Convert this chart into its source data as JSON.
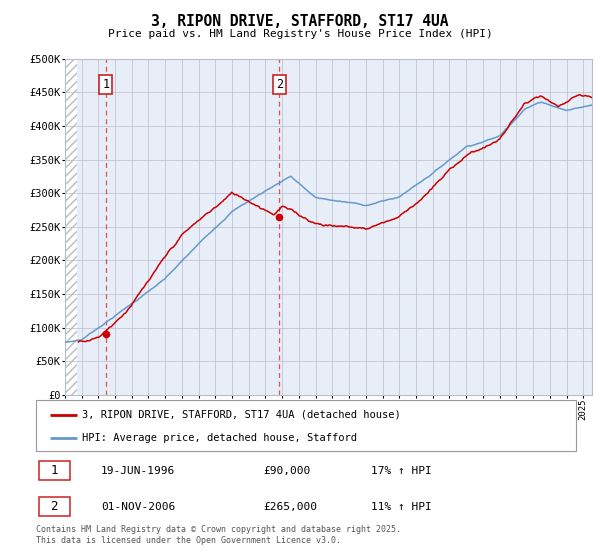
{
  "title": "3, RIPON DRIVE, STAFFORD, ST17 4UA",
  "subtitle": "Price paid vs. HM Land Registry's House Price Index (HPI)",
  "ylim": [
    0,
    500000
  ],
  "yticks": [
    0,
    50000,
    100000,
    150000,
    200000,
    250000,
    300000,
    350000,
    400000,
    450000,
    500000
  ],
  "ytick_labels": [
    "£0",
    "£50K",
    "£100K",
    "£150K",
    "£200K",
    "£250K",
    "£300K",
    "£350K",
    "£400K",
    "£450K",
    "£500K"
  ],
  "xlim_start": 1994.0,
  "xlim_end": 2025.5,
  "hpi_color": "#6699cc",
  "price_color": "#cc0000",
  "dashed_line_color": "#dd4444",
  "purchase1_year": 1996.46,
  "purchase1_price": 90000,
  "purchase1_label": "1",
  "purchase2_year": 2006.83,
  "purchase2_price": 265000,
  "purchase2_label": "2",
  "legend_line1": "3, RIPON DRIVE, STAFFORD, ST17 4UA (detached house)",
  "legend_line2": "HPI: Average price, detached house, Stafford",
  "table_row1_num": "1",
  "table_row1_date": "19-JUN-1996",
  "table_row1_price": "£90,000",
  "table_row1_hpi": "17% ↑ HPI",
  "table_row2_num": "2",
  "table_row2_date": "01-NOV-2006",
  "table_row2_price": "£265,000",
  "table_row2_hpi": "11% ↑ HPI",
  "footer": "Contains HM Land Registry data © Crown copyright and database right 2025.\nThis data is licensed under the Open Government Licence v3.0.",
  "bg_color": "#e8eef8",
  "grid_color": "#bbbbcc"
}
